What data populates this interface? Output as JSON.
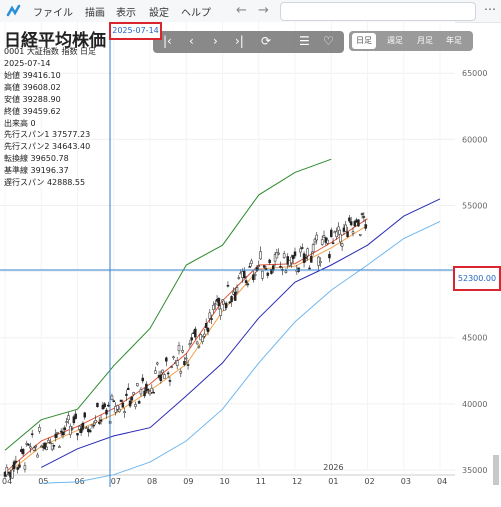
{
  "menu": {
    "file": "ファイル",
    "draw": "描画",
    "view": "表示",
    "settings": "設定",
    "help": "ヘルプ"
  },
  "chart_header": {
    "title": "日経平均株価",
    "subtitle": "0001 大証指数 指数  日足",
    "date": "2025-07-14",
    "open": "始値 39416.10",
    "high": "高値 39608.02",
    "low": "安値 39288.90",
    "close": "終値 39459.62",
    "volume": "出来高 0",
    "span1": "先行スパン1 37577.23",
    "span2": "先行スパン2 34643.40",
    "tenkan": "転換線 39650.78",
    "kijun": "基準線 39196.37",
    "chikou": "遅行スパン 42888.55"
  },
  "periods": {
    "daily": "日足",
    "weekly": "週足",
    "monthly": "月足",
    "yearly": "年足"
  },
  "crosshair": {
    "date": "2025-07-14",
    "price": "52300.00"
  },
  "y_axis_labels": [
    "65000",
    "60000",
    "55000",
    "50000",
    "45000",
    "40000",
    "35000"
  ],
  "year_label": "2026",
  "colors": {
    "tenkan": "#e0543a",
    "kijun": "#f0a24a",
    "span1": "#2a2ab5",
    "span2": "#6fb7ef",
    "chikou": "#2e8b2e",
    "crosshair": "#2d7fd0",
    "accent": "#d9252e"
  },
  "chart_data": {
    "type": "line",
    "title": "日経平均株価",
    "ylim": [
      35000,
      66000
    ],
    "x": [
      "2025-04",
      "2025-05",
      "2025-06",
      "2025-07",
      "2025-08",
      "2025-09",
      "2025-10",
      "2025-11",
      "2025-12",
      "2026-01",
      "2026-02",
      "2026-03",
      "2026-04"
    ],
    "series": [
      {
        "name": "転換線",
        "values": [
          34800,
          37200,
          38300,
          39650,
          41500,
          43800,
          47800,
          50500,
          50600,
          52200,
          54000,
          null,
          null
        ]
      },
      {
        "name": "基準線",
        "values": [
          34600,
          36800,
          38000,
          39196,
          41000,
          43000,
          47000,
          50200,
          50400,
          51800,
          53500,
          null,
          null
        ]
      },
      {
        "name": "先行スパン1",
        "values": [
          null,
          35200,
          36600,
          37577,
          38200,
          40600,
          43100,
          46500,
          49200,
          50500,
          52000,
          54200,
          55500
        ]
      },
      {
        "name": "先行スパン2",
        "values": [
          null,
          34000,
          34100,
          34643,
          35600,
          37200,
          39600,
          43100,
          46200,
          48600,
          50500,
          52500,
          53800
        ]
      },
      {
        "name": "遅行スパン",
        "values": [
          36500,
          38800,
          39600,
          42888,
          45700,
          50500,
          52000,
          55800,
          57500,
          58500,
          null,
          null,
          null
        ]
      }
    ]
  }
}
